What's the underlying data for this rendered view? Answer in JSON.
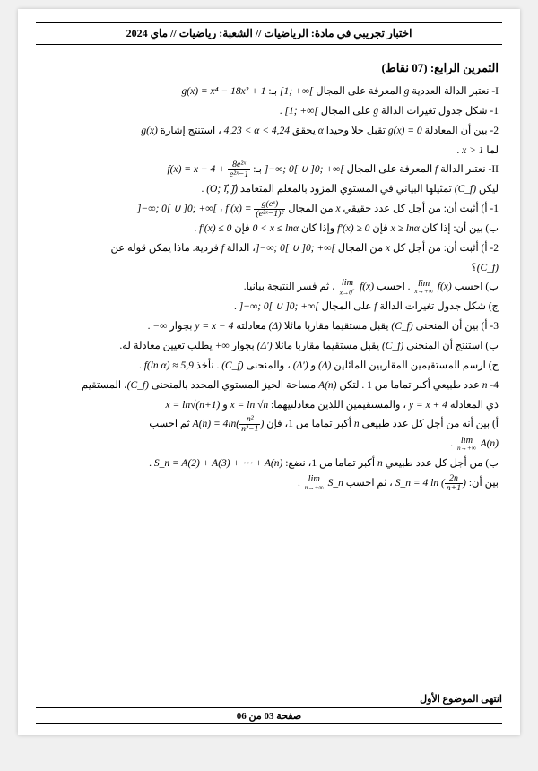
{
  "header": "اختبار تجريبي في مادة: الرياضيات // الشعبة: رياضيات // ماي 2024",
  "exerciseTitle": "التمرين الرابع: (07 نقاط)",
  "lines": {
    "l1_pre": "I- نعتبر الدالة العددية ",
    "l1_math1": "g",
    "l1_mid": " المعرفة على المجال ",
    "l1_math2": "[1; +∞[",
    "l1_mid2": " بـ: ",
    "l1_math3": "g(x) = x⁴ − 18x² + 1",
    "l2_pre": "1- شكل جدول تغيرات الدالة ",
    "l2_math1": "g",
    "l2_mid": " على المجال ",
    "l2_math2": "[1; +∞[",
    "l2_end": " .",
    "l3_pre": "2- بين أن المعادلة ",
    "l3_math1": "g(x) = 0",
    "l3_mid": " تقبل حلا وحيدا ",
    "l3_math2": "α",
    "l3_mid2": " يحقق ",
    "l3_math3": "4,23 < α < 4,24",
    "l3_mid3": " ، استنتج إشارة ",
    "l3_math4": "g(x)",
    "l4_pre": "لما ",
    "l4_math": "x > 1",
    "l4_end": " .",
    "l5_pre": "II- نعتبر الدالة ",
    "l5_math1": "f",
    "l5_mid": " المعرفة على المجال ",
    "l5_math2": "]−∞; 0[ ∪ ]0; +∞[",
    "l5_mid2": " بـ: ",
    "l5_math3_a": "f(x) = x − 4 + ",
    "l5_math3_num": "8e²ˣ",
    "l5_math3_den": "e²ˣ−1",
    "l6_pre": "ليكن ",
    "l6_math1": "(C_f)",
    "l6_mid": " تمثيلها البياني في المستوي المزود بالمعلم المتعامد ",
    "l6_math2": "(O; i⃗, j⃗)",
    "l6_end": " .",
    "l7_pre": "1- أ) أثبت أن: من أجل كل عدد حقيقي ",
    "l7_math1": "x",
    "l7_mid": " من المجال ",
    "l7_math2": "]−∞; 0[ ∪ ]0; +∞[",
    "l7_mid2": " ، ",
    "l7_math3_a": "f′(x) = ",
    "l7_math3_num": "g(eˣ)",
    "l7_math3_den": "(e²ˣ−1)²",
    "l8_pre": "ب) بين أن: إذا كان ",
    "l8_math1": "x ≥ lnα",
    "l8_mid": " فإن ",
    "l8_math2": "f′(x) ≥ 0",
    "l8_mid2": " وإذا كان ",
    "l8_math3": "0 < x ≤ lnα",
    "l8_mid3": " فإن ",
    "l8_math4": "f′(x) ≤ 0",
    "l8_end": " .",
    "l9_pre": "2- أ) أثبت أن: من أجل كل ",
    "l9_math1": "x",
    "l9_mid": " من المجال ",
    "l9_math2": "]−∞; 0[ ∪ ]0; +∞[",
    "l9_mid2": "، الدالة ",
    "l9_math3": "f",
    "l9_end": " فردية. ماذا يمكن قوله عن",
    "l10_math": "(C_f)",
    "l10_end": "؟",
    "l11_pre": "ب) احسب ",
    "l11_math1_a": "lim",
    "l11_math1_b": "x→+∞",
    "l11_math1_c": "f(x)",
    "l11_mid": " . احسب ",
    "l11_math2_a": "lim",
    "l11_math2_b": "x→0",
    "l11_math2_sup": ">",
    "l11_math2_c": "f(x)",
    "l11_end": " ، ثم فسر النتيجة بيانيا.",
    "l12_pre": "ج) شكل جدول تغيرات الدالة ",
    "l12_math1": "f",
    "l12_mid": " على المجال ",
    "l12_math2": "]−∞; 0[ ∪ ]0; +∞[",
    "l12_end": " .",
    "l13_pre": "3- أ) بين أن المنحنى ",
    "l13_math1": "(C_f)",
    "l13_mid": " يقبل مستقيما مقاربا مائلا ",
    "l13_math2": "(Δ)",
    "l13_mid2": " معادلته ",
    "l13_math3": "y = x − 4",
    "l13_mid3": " بجوار ",
    "l13_math4": "−∞",
    "l13_end": " .",
    "l14_pre": "ب) استنتج أن المنحنى ",
    "l14_math1": "(C_f)",
    "l14_mid": " يقبل مستقيما مقاربا مائلا ",
    "l14_math2": "(Δ′)",
    "l14_mid2": " بجوار ",
    "l14_math3": "+∞",
    "l14_end": " يطلب تعيين معادلة له.",
    "l15_pre": "ج) ارسم المستقيمين المقاربين المائلين ",
    "l15_math1": "(Δ)",
    "l15_mid1": " و ",
    "l15_math2": "(Δ′)",
    "l15_mid2": " ، والمنحنى ",
    "l15_math3": "(C_f)",
    "l15_mid3": " . نأخذ ",
    "l15_math4": "f(ln α) ≈ 5,9",
    "l15_end": " .",
    "l16_pre": "4- ",
    "l16_math1": "n",
    "l16_mid": " عدد طبيعي أكبر تماما من 1 . لتكن ",
    "l16_math2": "A(n)",
    "l16_mid2": " مساحة الحيز المستوي المحدد بالمنحنى ",
    "l16_math3": "(C_f)",
    "l16_end": "، المستقيم",
    "l17_pre": "ذي المعادلة ",
    "l17_math1": "y = x + 4",
    "l17_mid": " ، والمستقيمين اللذين معادلتيهما: ",
    "l17_math2": "x = ln √n",
    "l17_mid2": " و ",
    "l17_math3": "x = ln√(n+1)",
    "l18_pre": "أ) بين أنه من أجل كل عدد طبيعي ",
    "l18_math1": "n",
    "l18_mid": " أكبر تماما من 1، فإن ",
    "l18_math2_a": "A(n) = 4ln(",
    "l18_math2_num": "n²",
    "l18_math2_den": "n²−1",
    "l18_math2_b": ")",
    "l18_end": " ثم احسب",
    "l19_math_a": "lim",
    "l19_math_b": "n→+∞",
    "l19_math_c": "A(n)",
    "l19_end": " .",
    "l20_pre": "ب) من أجل كل عدد طبيعي ",
    "l20_math1": "n",
    "l20_mid": " أكبر تماما من 1، نضع: ",
    "l20_math2": "S_n = A(2) + A(3) + ⋯ + A(n)",
    "l20_end": " .",
    "l21_pre": "بين أن: ",
    "l21_math1_a": "S_n = 4 ln (",
    "l21_math1_num": "2n",
    "l21_math1_den": "n+1",
    "l21_math1_b": ")",
    "l21_mid": " ، ثم احسب ",
    "l21_math2_a": "lim",
    "l21_math2_b": "n→+∞",
    "l21_math2_c": "S_n",
    "l21_end": " ."
  },
  "footerTop": "انتهى الموضوع الأول",
  "footerPage": "صفحة 03 من 06"
}
